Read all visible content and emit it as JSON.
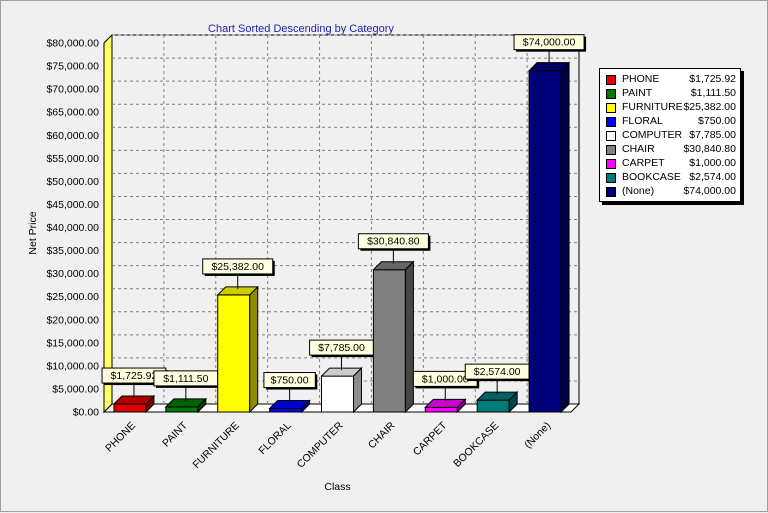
{
  "chart_data": {
    "type": "bar",
    "title": "Chart Sorted Descending by Category",
    "xlabel": "Class",
    "ylabel": "Net Price",
    "ylim": [
      0,
      80000
    ],
    "ytick_step": 5000,
    "ytick_labels": [
      "$0.00",
      "$5,000.00",
      "$10,000.00",
      "$15,000.00",
      "$20,000.00",
      "$25,000.00",
      "$30,000.00",
      "$35,000.00",
      "$40,000.00",
      "$45,000.00",
      "$50,000.00",
      "$55,000.00",
      "$60,000.00",
      "$65,000.00",
      "$70,000.00",
      "$75,000.00",
      "$80,000.00"
    ],
    "grid": true,
    "legend_position": "right",
    "categories": [
      "PHONE",
      "PAINT",
      "FURNITURE",
      "FLORAL",
      "COMPUTER",
      "CHAIR",
      "CARPET",
      "BOOKCASE",
      "(None)"
    ],
    "values": [
      1725.92,
      1111.5,
      25382.0,
      750.0,
      7785.0,
      30840.8,
      1000.0,
      2574.0,
      74000.0
    ],
    "value_labels": [
      "$1,725.92",
      "$1,111.50",
      "$25,382.00",
      "$750.00",
      "$7,785.00",
      "$30,840.80",
      "$1,000.00",
      "$2,574.00",
      "$74,000.00"
    ],
    "colors": [
      "#e00000",
      "#007a00",
      "#ffff00",
      "#0000ff",
      "#ffffff",
      "#808080",
      "#ff00ff",
      "#007b7b",
      "#00007a"
    ]
  },
  "legend": {
    "items": [
      {
        "name": "PHONE",
        "value": "$1,725.92",
        "color": "#e00000"
      },
      {
        "name": "PAINT",
        "value": "$1,111.50",
        "color": "#007a00"
      },
      {
        "name": "FURNITURE",
        "value": "$25,382.00",
        "color": "#ffff00"
      },
      {
        "name": "FLORAL",
        "value": "$750.00",
        "color": "#0000ff"
      },
      {
        "name": "COMPUTER",
        "value": "$7,785.00",
        "color": "#ffffff"
      },
      {
        "name": "CHAIR",
        "value": "$30,840.80",
        "color": "#808080"
      },
      {
        "name": "CARPET",
        "value": "$1,000.00",
        "color": "#ff00ff"
      },
      {
        "name": "BOOKCASE",
        "value": "$2,574.00",
        "color": "#007b7b"
      },
      {
        "name": "(None)",
        "value": "$74,000.00",
        "color": "#00007a"
      }
    ]
  }
}
